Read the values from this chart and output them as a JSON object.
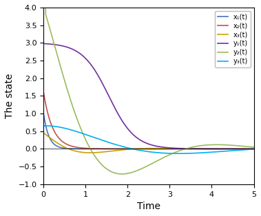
{
  "title": "",
  "xlabel": "Time",
  "ylabel": "The state",
  "xlim": [
    0,
    5
  ],
  "ylim": [
    -1,
    4
  ],
  "yticks": [
    -1,
    -0.5,
    0,
    0.5,
    1,
    1.5,
    2,
    2.5,
    3,
    3.5,
    4
  ],
  "xticks": [
    0,
    1,
    2,
    3,
    4,
    5
  ],
  "colors": {
    "x1": "#4472c4",
    "x2": "#c0504d",
    "x3": "#c8a000",
    "y1": "#7030a0",
    "y2": "#9bbb59",
    "y3": "#00b0f0"
  },
  "labels": {
    "x1": "x₁(t)",
    "x2": "x₂(t)",
    "x3": "x₃(t)",
    "y1": "y₁(t)",
    "y2": "y₂(t)",
    "y3": "y₃(t)"
  },
  "legend_loc": "upper right",
  "background_color": "#ffffff",
  "linewidth": 1.2,
  "n_points": 3000
}
